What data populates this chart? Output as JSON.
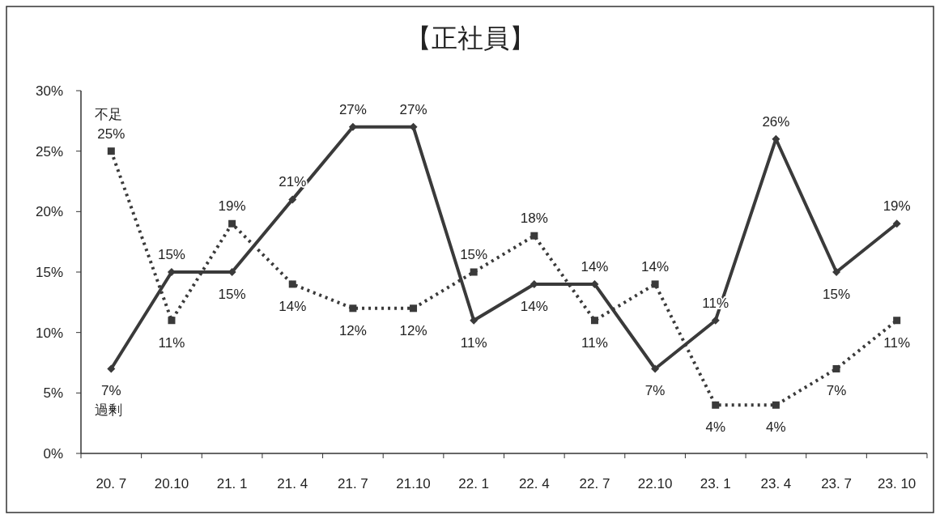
{
  "chart_data": {
    "type": "line",
    "title": "【正社員】",
    "categories": [
      "20. 7",
      "20.10",
      "21. 1",
      "21. 4",
      "21. 7",
      "21.10",
      "22. 1",
      "22. 4",
      "22. 7",
      "22.10",
      "23. 1",
      "23. 4",
      "23. 7",
      "23. 10"
    ],
    "ylim": [
      0,
      30
    ],
    "yticks": [
      {
        "value": 0,
        "label": "0%"
      },
      {
        "value": 5,
        "label": "5%"
      },
      {
        "value": 10,
        "label": "10%"
      },
      {
        "value": 15,
        "label": "15%"
      },
      {
        "value": 20,
        "label": "20%"
      },
      {
        "value": 25,
        "label": "25%"
      },
      {
        "value": 30,
        "label": "30%"
      }
    ],
    "grid": false,
    "legend": false,
    "series": [
      {
        "name": "不足",
        "color": "#3a3a3a",
        "line_style": "dotted",
        "marker": "square",
        "values": [
          25,
          11,
          19,
          14,
          12,
          12,
          15,
          18,
          11,
          14,
          4,
          4,
          7,
          11
        ],
        "value_labels": [
          "25%",
          "11%",
          "19%",
          "14%",
          "12%",
          "12%",
          "15%",
          "18%",
          "11%",
          "14%",
          "4%",
          "4%",
          "7%",
          "11%"
        ]
      },
      {
        "name": "過剰",
        "color": "#3a3a3a",
        "line_style": "solid",
        "marker": "diamond",
        "values": [
          7,
          15,
          15,
          21,
          27,
          27,
          11,
          14,
          14,
          7,
          11,
          26,
          15,
          19
        ],
        "value_labels": [
          "7%",
          "15%",
          "15%",
          "21%",
          "27%",
          "27%",
          "11%",
          "14%",
          "14%",
          "7%",
          "11%",
          "26%",
          "15%",
          "19%"
        ]
      }
    ]
  }
}
